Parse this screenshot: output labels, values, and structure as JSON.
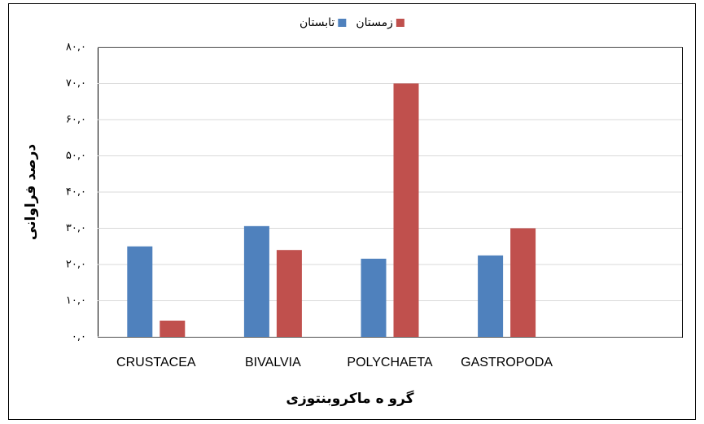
{
  "chart_data": {
    "type": "bar",
    "categories": [
      "CRUSTACEA",
      "BIVALVIA",
      "POLYCHAETA",
      "GASTROPODA",
      null
    ],
    "series": [
      {
        "name": "تابستان",
        "color": "#4f81bd",
        "values": [
          25,
          30.6,
          21.6,
          22.5,
          null
        ]
      },
      {
        "name": "زمستان",
        "color": "#c0504d",
        "values": [
          4.5,
          24,
          70,
          30,
          null
        ]
      }
    ],
    "ylim": [
      0,
      80
    ],
    "yticks": [
      {
        "value": 0,
        "label": "۰,۰"
      },
      {
        "value": 10,
        "label": "۱۰,۰"
      },
      {
        "value": 20,
        "label": "۲۰,۰"
      },
      {
        "value": 30,
        "label": "۳۰,۰"
      },
      {
        "value": 40,
        "label": "۴۰,۰"
      },
      {
        "value": 50,
        "label": "۵۰,۰"
      },
      {
        "value": 60,
        "label": "۶۰,۰"
      },
      {
        "value": 70,
        "label": "۷۰,۰"
      },
      {
        "value": 80,
        "label": "۸۰,۰"
      }
    ],
    "y_label": "درصد فراوانی",
    "x_label": "گرو ه ماکروبنتوزی",
    "grid": true,
    "legend": "top"
  }
}
